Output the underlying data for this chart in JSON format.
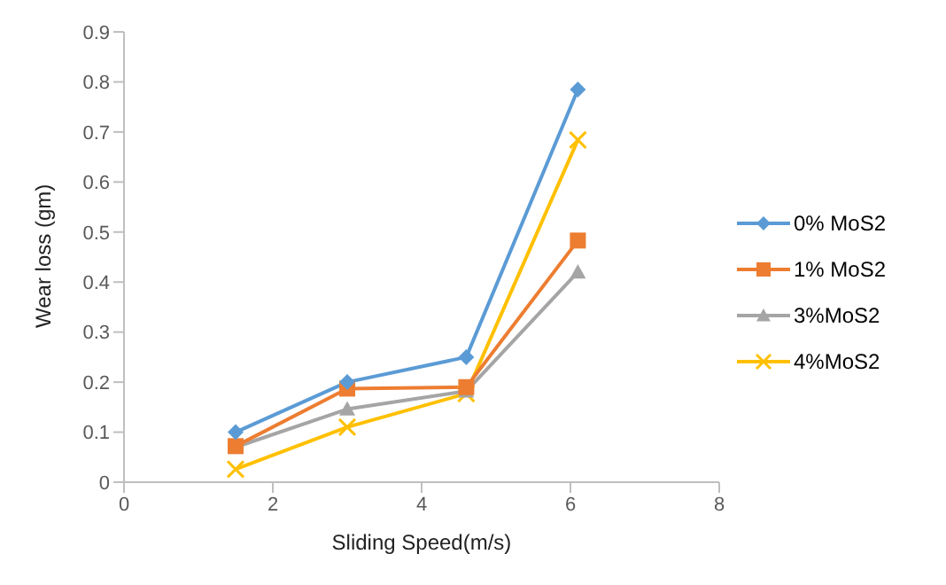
{
  "chart_data": {
    "type": "line",
    "xlabel": "Sliding  Speed(m/s)",
    "ylabel": "Wear  loss (gm)",
    "x": [
      1.5,
      3,
      4.6,
      6.1
    ],
    "xlim": [
      0,
      8
    ],
    "xticks": [
      0,
      2,
      4,
      6,
      8
    ],
    "ylim": [
      0,
      0.9
    ],
    "yticks": [
      0,
      0.1,
      0.2,
      0.3,
      0.4,
      0.5,
      0.6,
      0.7,
      0.8,
      0.9
    ],
    "grid": false,
    "legend": "right",
    "series": [
      {
        "name": "0% MoS2",
        "color": "#5b9bd5",
        "marker": "diamond",
        "values": [
          0.1,
          0.2,
          0.25,
          0.785
        ]
      },
      {
        "name": "1% MoS2",
        "color": "#ed7d31",
        "marker": "square",
        "values": [
          0.072,
          0.187,
          0.19,
          0.483
        ]
      },
      {
        "name": "3%MoS2",
        "color": "#a5a5a5",
        "marker": "triangle",
        "values": [
          0.07,
          0.146,
          0.182,
          0.42
        ]
      },
      {
        "name": "4%MoS2",
        "color": "#ffc000",
        "marker": "cross",
        "values": [
          0.026,
          0.11,
          0.177,
          0.684
        ]
      }
    ]
  }
}
